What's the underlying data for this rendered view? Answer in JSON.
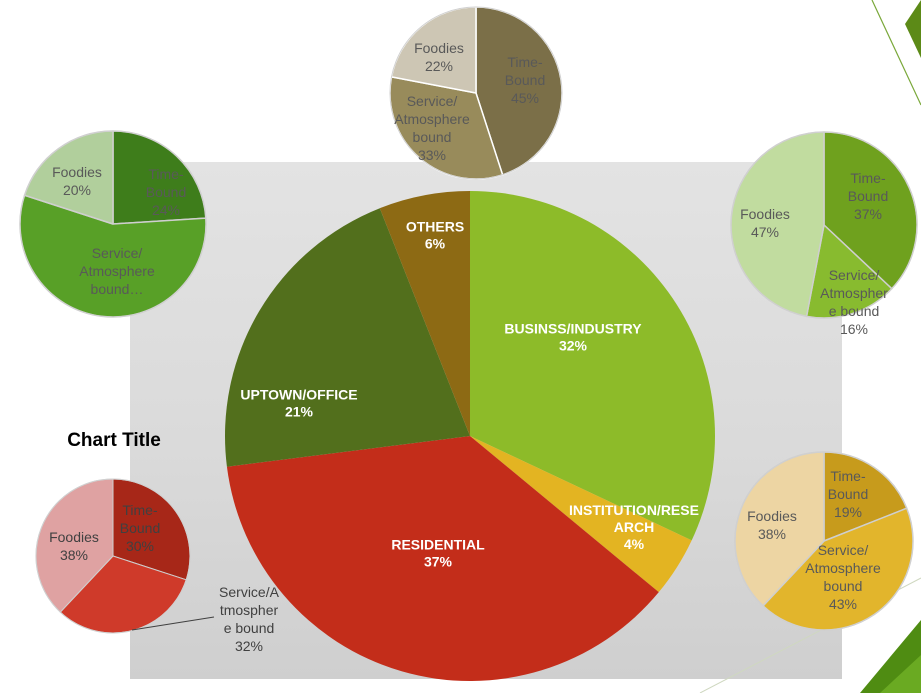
{
  "chart_data": [
    {
      "type": "pie",
      "title": "",
      "categories": [
        "BUSINSS/INDUSTRY",
        "INSTITUTION/RESE ARCH",
        "RESIDENTIAL",
        "UPTOWN/OFFICE",
        "OTHERS"
      ],
      "values": [
        32,
        4,
        37,
        21,
        6
      ],
      "value_labels": [
        "32%",
        "4%",
        "37%",
        "21%",
        "6%"
      ],
      "colors": [
        "#8dbb29",
        "#e3b422",
        "#c32d1a",
        "#526f1c",
        "#8d6a14"
      ]
    },
    {
      "type": "pie",
      "title": "",
      "categories": [
        "Time-Bound",
        "Service/Atmosphere bound",
        "Foodies"
      ],
      "values": [
        45,
        33,
        22
      ],
      "value_labels": [
        "45%",
        "33%",
        "22%"
      ],
      "colors": [
        "#7b6f48",
        "#988b5b",
        "#cdc6b4"
      ]
    },
    {
      "type": "pie",
      "title": "",
      "categories": [
        "Time-Bound",
        "Service/Atmosphere bound…",
        "Foodies"
      ],
      "values": [
        24,
        56,
        20
      ],
      "value_labels": [
        "24%",
        "",
        "20%"
      ],
      "colors": [
        "#3e7d1b",
        "#58a027",
        "#b1cf9c"
      ]
    },
    {
      "type": "pie",
      "title": "",
      "categories": [
        "Time-Bound",
        "Service/Atmospher e bound",
        "Foodies"
      ],
      "values": [
        37,
        16,
        47
      ],
      "value_labels": [
        "37%",
        "16%",
        "47%"
      ],
      "colors": [
        "#6fa11e",
        "#88bb2f",
        "#c1dc9f"
      ]
    },
    {
      "type": "pie",
      "title": "",
      "categories": [
        "Time-Bound",
        "Service/Atmosphere bound",
        "Foodies"
      ],
      "values": [
        19,
        43,
        38
      ],
      "value_labels": [
        "19%",
        "43%",
        "38%"
      ],
      "colors": [
        "#c79b1c",
        "#e2b52c",
        "#edd5a3"
      ]
    },
    {
      "type": "pie",
      "title": "Chart Title",
      "categories": [
        "Time-Bound",
        "Service/Atmosphere bound",
        "Foodies"
      ],
      "values": [
        30,
        32,
        38
      ],
      "value_labels": [
        "30%",
        "32%",
        "38%"
      ],
      "colors": [
        "#a72718",
        "#cf3a2a",
        "#dfa2a2"
      ]
    }
  ]
}
